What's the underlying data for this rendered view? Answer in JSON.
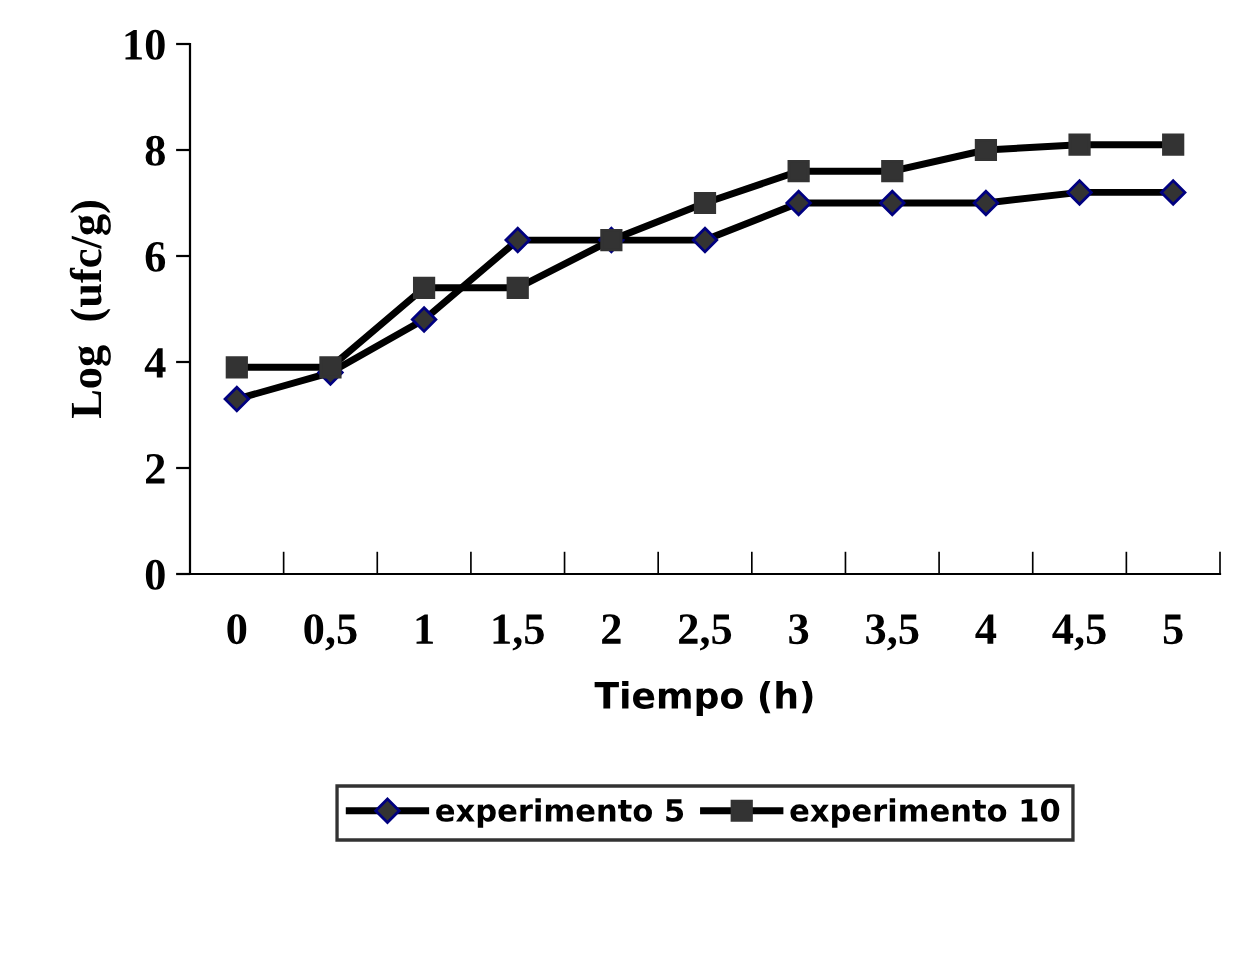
{
  "chart_data": {
    "type": "line",
    "categories": [
      "0",
      "0,5",
      "1",
      "1,5",
      "2",
      "2,5",
      "3",
      "3,5",
      "4",
      "4,5",
      "5"
    ],
    "series": [
      {
        "name": "experimento 5",
        "color": "#000000",
        "marker": "diamond",
        "values": [
          3.3,
          3.8,
          4.8,
          6.3,
          6.3,
          6.3,
          7.0,
          7.0,
          7.0,
          7.2,
          7.2
        ]
      },
      {
        "name": "experimento 10",
        "color": "#000000",
        "marker": "square",
        "values": [
          3.9,
          3.9,
          5.4,
          5.4,
          6.3,
          7.0,
          7.6,
          7.6,
          8.0,
          8.1,
          8.1
        ]
      }
    ],
    "xlabel": "Tiempo (h)",
    "ylabel": "Log  (ufc/g)",
    "ylim": [
      0,
      10
    ],
    "yticks": [
      0,
      2,
      4,
      6,
      8,
      10
    ],
    "grid": false,
    "legend": "bottom",
    "line_style": "solid"
  }
}
